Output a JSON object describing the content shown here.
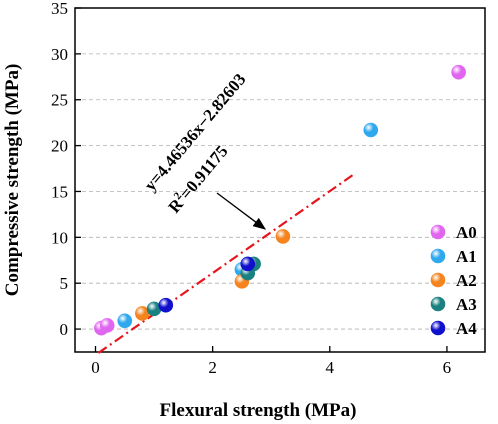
{
  "chart_data": {
    "type": "scatter",
    "xlabel": "Flexural strength (MPa)",
    "ylabel": "Compressive strength (MPa)",
    "xlim": [
      -0.35,
      6.65
    ],
    "ylim": [
      -2.5,
      35
    ],
    "x_ticks": [
      0,
      2,
      4,
      6
    ],
    "y_ticks": [
      0,
      5,
      10,
      15,
      20,
      25,
      30,
      35
    ],
    "x_tick_labels": [
      "0",
      "2",
      "4",
      "6"
    ],
    "y_tick_labels": [
      "0",
      "5",
      "10",
      "15",
      "20",
      "25",
      "30",
      "35"
    ],
    "grid": "horizontal dashed",
    "legend_position": "right",
    "series": [
      {
        "name": "A0",
        "color": "#e066f0",
        "points": [
          [
            0.1,
            0.1
          ],
          [
            0.2,
            0.4
          ],
          [
            6.2,
            28.0
          ]
        ]
      },
      {
        "name": "A1",
        "color": "#2fa8ee",
        "points": [
          [
            0.5,
            0.9
          ],
          [
            2.5,
            6.5
          ],
          [
            4.7,
            21.7
          ]
        ]
      },
      {
        "name": "A2",
        "color": "#f5841f",
        "points": [
          [
            0.8,
            1.7
          ],
          [
            2.5,
            5.2
          ],
          [
            3.2,
            10.1
          ]
        ]
      },
      {
        "name": "A3",
        "color": "#1b8080",
        "points": [
          [
            1.0,
            2.2
          ],
          [
            2.6,
            6.1
          ],
          [
            2.7,
            7.1
          ]
        ]
      },
      {
        "name": "A4",
        "color": "#1010cc",
        "points": [
          [
            1.2,
            2.6
          ],
          [
            2.6,
            7.1
          ]
        ]
      }
    ],
    "fit": {
      "slope": 4.46536,
      "intercept": -2.82603,
      "x_range": [
        0.05,
        4.4
      ],
      "color": "#e8141c"
    },
    "annotations": {
      "equation": "y=4.46536x−2.82603",
      "r2_prefix": "R",
      "r2_sup": "2",
      "r2_suffix": "=0.91175"
    }
  }
}
